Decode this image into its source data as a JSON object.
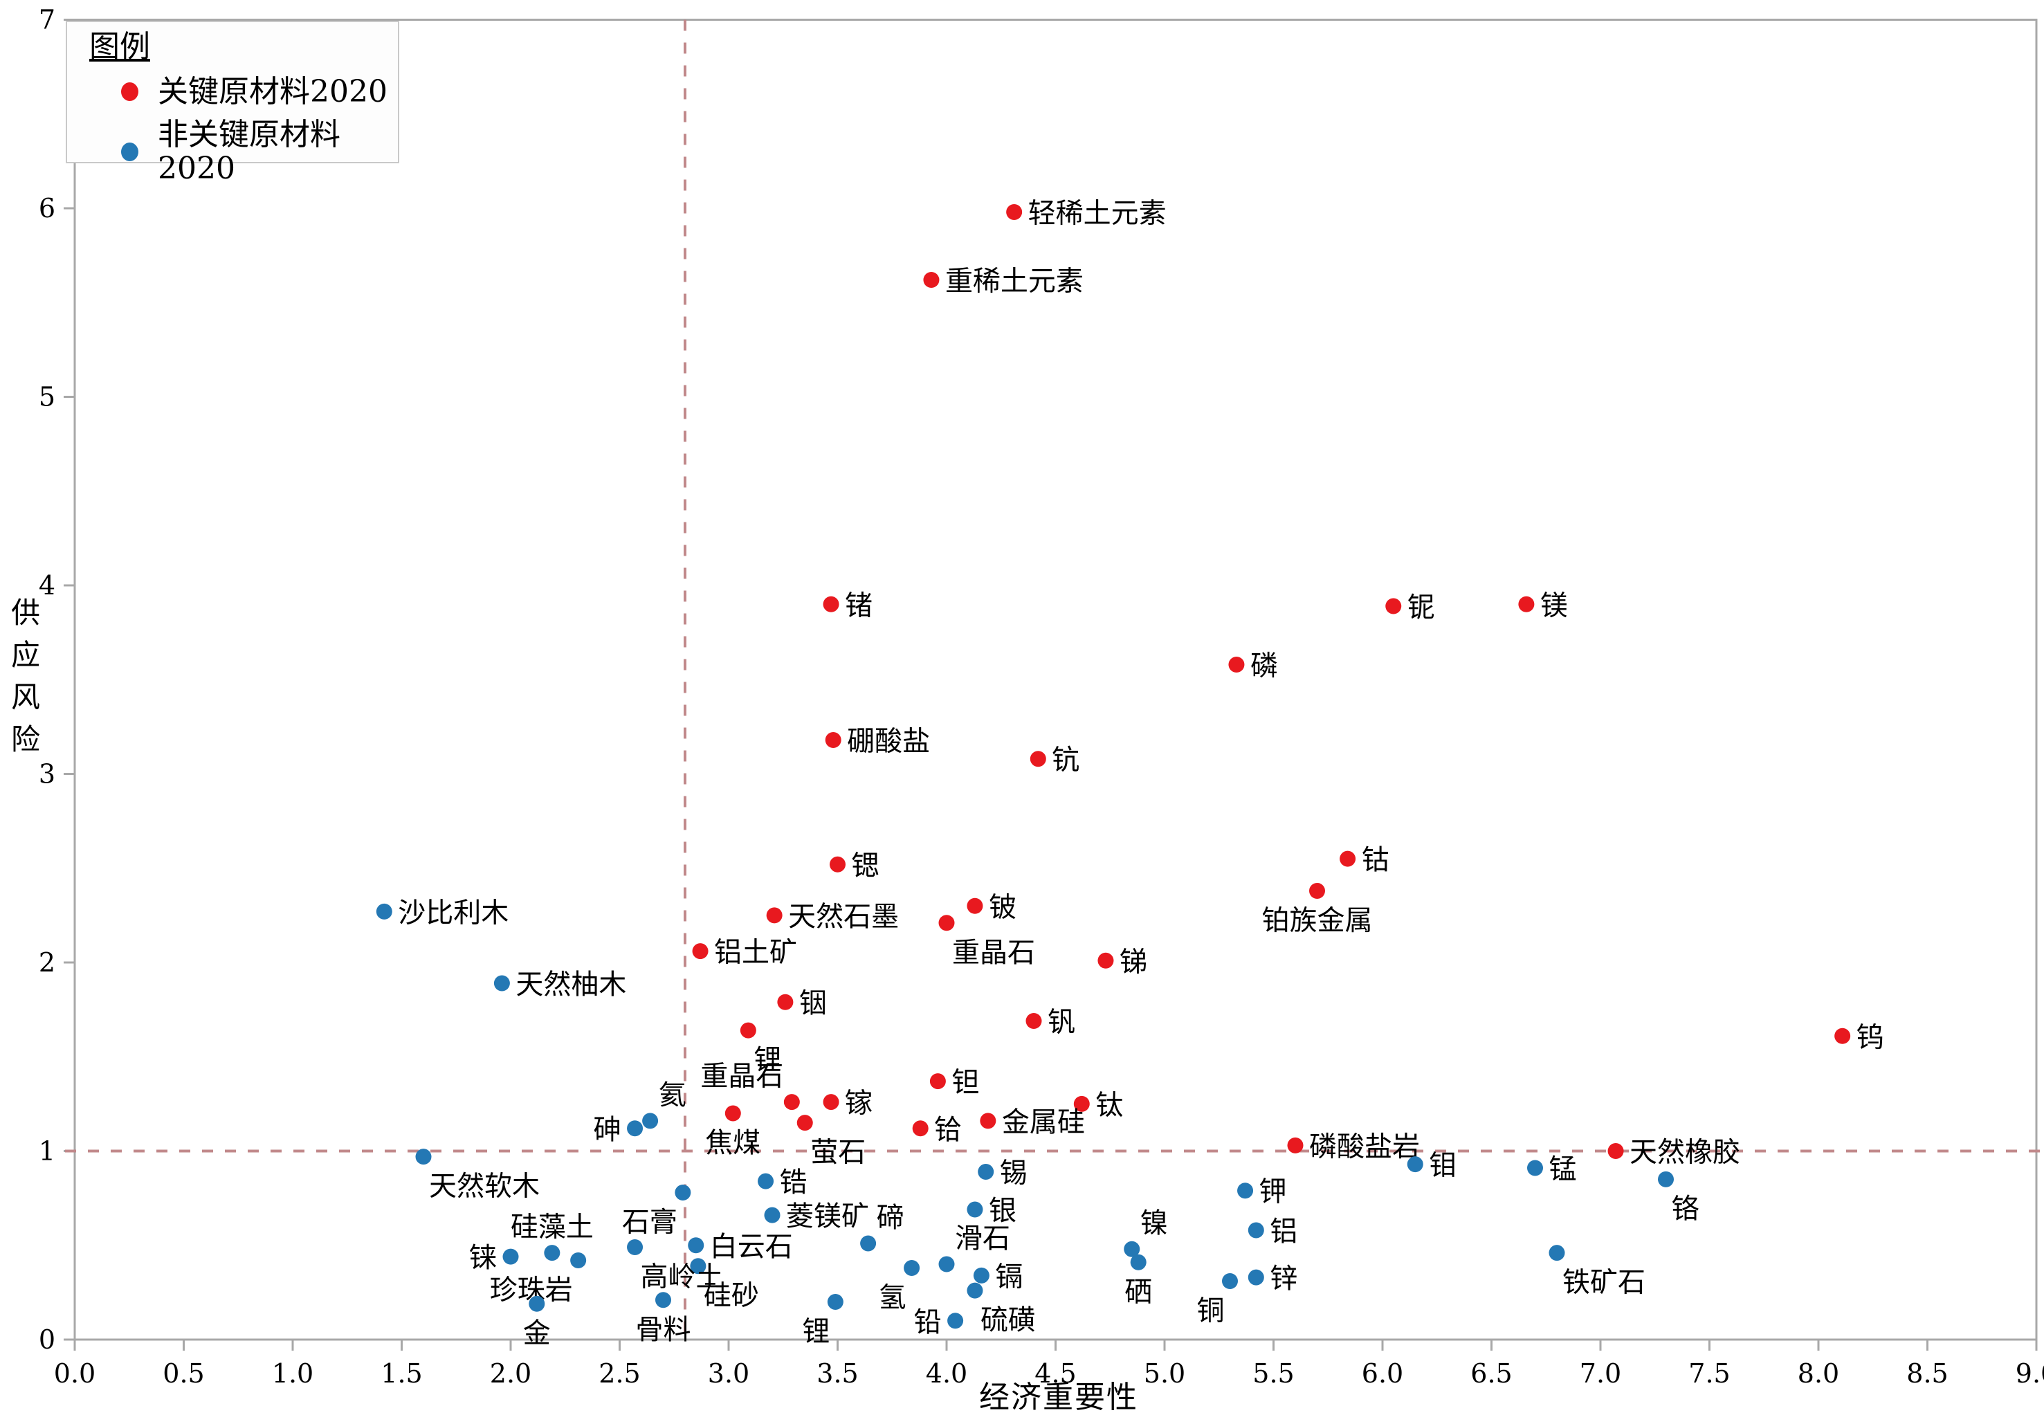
{
  "chart_data": {
    "type": "scatter",
    "title": "",
    "xlabel": "经济重要性",
    "ylabel": "供应风险",
    "xlim": [
      0,
      9
    ],
    "ylim": [
      0,
      7
    ],
    "grid": false,
    "x_tick_step": 0.5,
    "y_tick_step": 1,
    "x_tick_labels": [
      "0.0",
      "0.5",
      "1.0",
      "1.5",
      "2.0",
      "2.5",
      "3.0",
      "3.5",
      "4.0",
      "4.5",
      "5.0",
      "5.5",
      "6.0",
      "6.5",
      "7.0",
      "7.5",
      "8.0",
      "8.5",
      "9.0"
    ],
    "y_tick_labels": [
      "0",
      "1",
      "2",
      "3",
      "4",
      "5",
      "6",
      "7"
    ],
    "thresholds": {
      "x": 2.8,
      "y": 1.0,
      "line_color": "#c1898b"
    },
    "legend": {
      "title": "图例",
      "position": "upper-left",
      "entries": [
        {
          "label": "关键原材料2020",
          "color": "#e8191f"
        },
        {
          "label": "非关键原材料2020",
          "color": "#2478b4"
        }
      ]
    },
    "series": [
      {
        "name": "关键原材料2020",
        "color": "#e8191f",
        "points": [
          {
            "label": "轻稀土元素",
            "x": 4.31,
            "y": 5.98,
            "lp": "right"
          },
          {
            "label": "重稀土元素",
            "x": 3.93,
            "y": 5.62,
            "lp": "right"
          },
          {
            "label": "锗",
            "x": 3.47,
            "y": 3.9,
            "lp": "right"
          },
          {
            "label": "铌",
            "x": 6.05,
            "y": 3.89,
            "lp": "right"
          },
          {
            "label": "镁",
            "x": 6.66,
            "y": 3.9,
            "lp": "right"
          },
          {
            "label": "磷",
            "x": 5.33,
            "y": 3.58,
            "lp": "right"
          },
          {
            "label": "硼酸盐",
            "x": 3.48,
            "y": 3.18,
            "lp": "right"
          },
          {
            "label": "钪",
            "x": 4.42,
            "y": 3.08,
            "lp": "right"
          },
          {
            "label": "锶",
            "x": 3.5,
            "y": 2.52,
            "lp": "right"
          },
          {
            "label": "钴",
            "x": 5.84,
            "y": 2.55,
            "lp": "right"
          },
          {
            "label": "铂族金属",
            "x": 5.7,
            "y": 2.38,
            "lp": "below"
          },
          {
            "label": "铍",
            "x": 4.13,
            "y": 2.3,
            "lp": "right"
          },
          {
            "label": "天然石墨",
            "x": 3.21,
            "y": 2.25,
            "lp": "right"
          },
          {
            "label": "重晶石",
            "x": 4.0,
            "y": 2.21,
            "lp": "below-right"
          },
          {
            "label": "铝土矿",
            "x": 2.87,
            "y": 2.06,
            "lp": "right"
          },
          {
            "label": "锑",
            "x": 4.73,
            "y": 2.01,
            "lp": "right"
          },
          {
            "label": "铟",
            "x": 3.26,
            "y": 1.79,
            "lp": "right"
          },
          {
            "label": "钒",
            "x": 4.4,
            "y": 1.69,
            "lp": "right"
          },
          {
            "label": "锂",
            "x": 3.09,
            "y": 1.64,
            "lp": "below-right"
          },
          {
            "label": "钽",
            "x": 3.96,
            "y": 1.37,
            "lp": "right"
          },
          {
            "label": "重晶石",
            "x": 3.29,
            "y": 1.26,
            "lp": "above-left"
          },
          {
            "label": "镓",
            "x": 3.47,
            "y": 1.26,
            "lp": "right"
          },
          {
            "label": "焦煤",
            "x": 3.02,
            "y": 1.2,
            "lp": "below"
          },
          {
            "label": "萤石",
            "x": 3.35,
            "y": 1.15,
            "lp": "below-right"
          },
          {
            "label": "钛",
            "x": 4.62,
            "y": 1.25,
            "lp": "right"
          },
          {
            "label": "铪",
            "x": 3.88,
            "y": 1.12,
            "lp": "right"
          },
          {
            "label": "金属硅",
            "x": 4.19,
            "y": 1.16,
            "lp": "right"
          },
          {
            "label": "磷酸盐岩",
            "x": 5.6,
            "y": 1.03,
            "lp": "right"
          },
          {
            "label": "天然橡胶",
            "x": 7.07,
            "y": 1.0,
            "lp": "right"
          },
          {
            "label": "钨",
            "x": 8.11,
            "y": 1.61,
            "lp": "right"
          }
        ]
      },
      {
        "name": "非关键原材料2020",
        "color": "#2478b4",
        "points": [
          {
            "label": "沙比利木",
            "x": 1.42,
            "y": 2.27,
            "lp": "right"
          },
          {
            "label": "天然柚木",
            "x": 1.96,
            "y": 1.89,
            "lp": "right"
          },
          {
            "label": "天然软木",
            "x": 1.6,
            "y": 0.97,
            "lp": "below-right"
          },
          {
            "label": "氦",
            "x": 2.64,
            "y": 1.16,
            "lp": "above-right"
          },
          {
            "label": "砷",
            "x": 2.57,
            "y": 1.12,
            "lp": "left"
          },
          {
            "label": "石膏",
            "x": 2.79,
            "y": 0.78,
            "lp": "below-left"
          },
          {
            "label": "锆",
            "x": 3.17,
            "y": 0.84,
            "lp": "right"
          },
          {
            "label": "菱镁矿",
            "x": 3.2,
            "y": 0.66,
            "lp": "right"
          },
          {
            "label": "白云石",
            "x": 2.85,
            "y": 0.5,
            "lp": "right"
          },
          {
            "label": "硅砂",
            "x": 2.86,
            "y": 0.39,
            "lp": "below-right"
          },
          {
            "label": "高岭土",
            "x": 2.57,
            "y": 0.49,
            "lp": "below-right"
          },
          {
            "label": "铼",
            "x": 2.0,
            "y": 0.44,
            "lp": "left"
          },
          {
            "label": "硅藻土",
            "x": 2.19,
            "y": 0.46,
            "lp": "above"
          },
          {
            "label": "珍珠岩",
            "x": 2.31,
            "y": 0.42,
            "lp": "below-left"
          },
          {
            "label": "骨料",
            "x": 2.7,
            "y": 0.21,
            "lp": "below"
          },
          {
            "label": "金",
            "x": 2.12,
            "y": 0.19,
            "lp": "below"
          },
          {
            "label": "锂",
            "x": 3.49,
            "y": 0.2,
            "lp": "below-left"
          },
          {
            "label": "铅",
            "x": 4.04,
            "y": 0.1,
            "lp": "left"
          },
          {
            "label": "碲",
            "x": 3.64,
            "y": 0.51,
            "lp": "above-right"
          },
          {
            "label": "氢",
            "x": 3.84,
            "y": 0.38,
            "lp": "below-left"
          },
          {
            "label": "滑石",
            "x": 4.0,
            "y": 0.4,
            "lp": "above-right"
          },
          {
            "label": "镉",
            "x": 4.16,
            "y": 0.34,
            "lp": "right"
          },
          {
            "label": "硫磺",
            "x": 4.13,
            "y": 0.26,
            "lp": "below-right"
          },
          {
            "label": "锡",
            "x": 4.18,
            "y": 0.89,
            "lp": "right"
          },
          {
            "label": "银",
            "x": 4.13,
            "y": 0.69,
            "lp": "right"
          },
          {
            "label": "镍",
            "x": 4.85,
            "y": 0.48,
            "lp": "above-right"
          },
          {
            "label": "硒",
            "x": 4.88,
            "y": 0.41,
            "lp": "below"
          },
          {
            "label": "钾",
            "x": 5.37,
            "y": 0.79,
            "lp": "right"
          },
          {
            "label": "铝",
            "x": 5.42,
            "y": 0.58,
            "lp": "right"
          },
          {
            "label": "锌",
            "x": 5.42,
            "y": 0.33,
            "lp": "right"
          },
          {
            "label": "铜",
            "x": 5.3,
            "y": 0.31,
            "lp": "below-left"
          },
          {
            "label": "钼",
            "x": 6.15,
            "y": 0.93,
            "lp": "right"
          },
          {
            "label": "锰",
            "x": 6.7,
            "y": 0.91,
            "lp": "right"
          },
          {
            "label": "铬",
            "x": 7.3,
            "y": 0.85,
            "lp": "below-right"
          },
          {
            "label": "铁矿石",
            "x": 6.8,
            "y": 0.46,
            "lp": "below-right"
          }
        ]
      }
    ]
  }
}
